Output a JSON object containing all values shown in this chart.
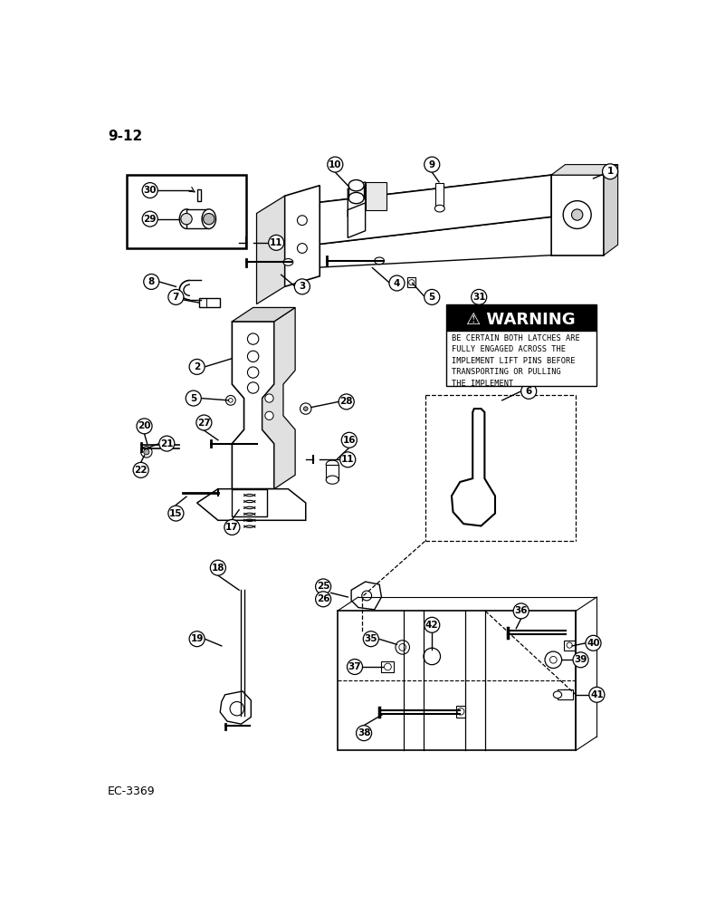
{
  "page_label": "9-12",
  "footer_label": "EC-3369",
  "background_color": "#ffffff",
  "line_color": "#000000",
  "warning_header": "⚠ WARNING",
  "warning_text": "BE CERTAIN BOTH LATCHES ARE\nFULLY ENGAGED ACROSS THE\nIMPLEMENT LIFT PINS BEFORE\nTRANSPORTING OR PULLING\nTHE IMPLEMENT"
}
